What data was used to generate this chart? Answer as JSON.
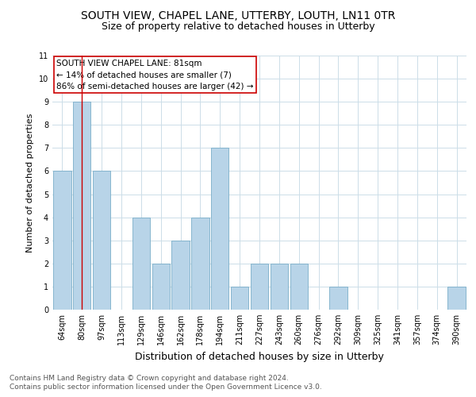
{
  "title": "SOUTH VIEW, CHAPEL LANE, UTTERBY, LOUTH, LN11 0TR",
  "subtitle": "Size of property relative to detached houses in Utterby",
  "xlabel": "Distribution of detached houses by size in Utterby",
  "ylabel": "Number of detached properties",
  "footer_line1": "Contains HM Land Registry data © Crown copyright and database right 2024.",
  "footer_line2": "Contains public sector information licensed under the Open Government Licence v3.0.",
  "bin_labels": [
    "64sqm",
    "80sqm",
    "97sqm",
    "113sqm",
    "129sqm",
    "146sqm",
    "162sqm",
    "178sqm",
    "194sqm",
    "211sqm",
    "227sqm",
    "243sqm",
    "260sqm",
    "276sqm",
    "292sqm",
    "309sqm",
    "325sqm",
    "341sqm",
    "357sqm",
    "374sqm",
    "390sqm"
  ],
  "bar_heights": [
    6,
    9,
    6,
    0,
    4,
    2,
    3,
    4,
    7,
    1,
    2,
    2,
    2,
    0,
    1,
    0,
    0,
    0,
    0,
    0,
    1
  ],
  "bar_color": "#b8d4e8",
  "bar_edge_color": "#7aaec8",
  "reference_line_x": 1,
  "reference_line_color": "#cc0000",
  "annotation_text": "SOUTH VIEW CHAPEL LANE: 81sqm\n← 14% of detached houses are smaller (7)\n86% of semi-detached houses are larger (42) →",
  "ylim": [
    0,
    11
  ],
  "yticks": [
    0,
    1,
    2,
    3,
    4,
    5,
    6,
    7,
    8,
    9,
    10,
    11
  ],
  "bg_color": "#ffffff",
  "grid_color": "#ccdde8",
  "title_fontsize": 10,
  "subtitle_fontsize": 9,
  "axis_label_fontsize": 9,
  "tick_fontsize": 7,
  "annotation_fontsize": 7.5,
  "footer_fontsize": 6.5,
  "ylabel_fontsize": 8
}
